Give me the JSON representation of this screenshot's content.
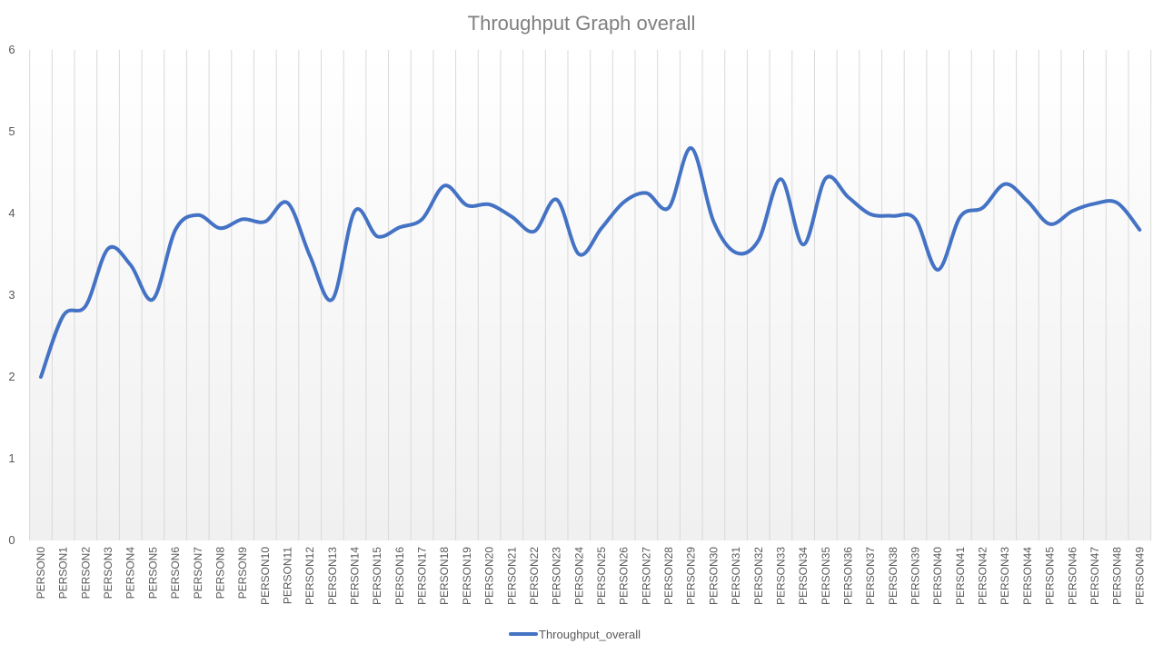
{
  "chart_data": {
    "type": "line",
    "title": "Throughput  Graph overall",
    "xlabel": "",
    "ylabel": "",
    "ylim": [
      0,
      6
    ],
    "yticks": [
      0,
      1,
      2,
      3,
      4,
      5,
      6
    ],
    "categories": [
      "PERSON0",
      "PERSON1",
      "PERSON2",
      "PERSON3",
      "PERSON4",
      "PERSON5",
      "PERSON6",
      "PERSON7",
      "PERSON8",
      "PERSON9",
      "PERSON10",
      "PERSON11",
      "PERSON12",
      "PERSON13",
      "PERSON14",
      "PERSON15",
      "PERSON16",
      "PERSON17",
      "PERSON18",
      "PERSON19",
      "PERSON20",
      "PERSON21",
      "PERSON22",
      "PERSON23",
      "PERSON24",
      "PERSON25",
      "PERSON26",
      "PERSON27",
      "PERSON28",
      "PERSON29",
      "PERSON30",
      "PERSON31",
      "PERSON32",
      "PERSON33",
      "PERSON34",
      "PERSON35",
      "PERSON36",
      "PERSON37",
      "PERSON38",
      "PERSON39",
      "PERSON40",
      "PERSON41",
      "PERSON42",
      "PERSON43",
      "PERSON44",
      "PERSON45",
      "PERSON46",
      "PERSON47",
      "PERSON48",
      "PERSON49"
    ],
    "series": [
      {
        "name": "Throughput_overall",
        "color": "#4472c4",
        "values": [
          2.0,
          2.75,
          2.87,
          3.57,
          3.37,
          2.95,
          3.8,
          3.98,
          3.82,
          3.93,
          3.9,
          4.13,
          3.48,
          2.95,
          4.03,
          3.72,
          3.83,
          3.93,
          4.34,
          4.1,
          4.11,
          3.96,
          3.78,
          4.17,
          3.5,
          3.82,
          4.14,
          4.25,
          4.07,
          4.8,
          3.9,
          3.52,
          3.67,
          4.42,
          3.62,
          4.43,
          4.2,
          3.99,
          3.97,
          3.93,
          3.31,
          3.96,
          4.07,
          4.36,
          4.15,
          3.87,
          4.03,
          4.12,
          4.13,
          3.8
        ]
      }
    ],
    "grid": {
      "vertical": true,
      "horizontal": false
    },
    "legend": {
      "position": "bottom"
    }
  }
}
